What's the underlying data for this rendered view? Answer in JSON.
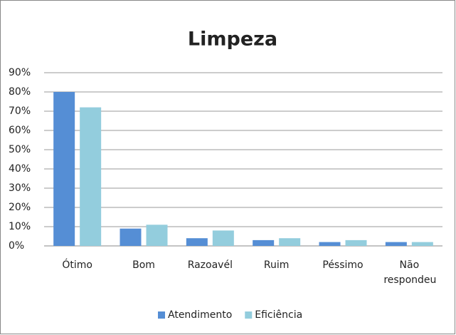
{
  "chart_data": {
    "type": "bar",
    "title": "Limpeza",
    "categories": [
      "Ótimo",
      "Bom",
      "Razoavél",
      "Ruim",
      "Péssimo",
      "Não respondeu"
    ],
    "series": [
      {
        "name": "Atendimento",
        "color": "#558ed5",
        "values": [
          80,
          9,
          4,
          3,
          2,
          2
        ]
      },
      {
        "name": "Eficiência",
        "color": "#93cddd",
        "values": [
          72,
          11,
          8,
          4,
          3,
          2
        ]
      }
    ],
    "ylim": [
      0,
      90
    ],
    "yticks": [
      {
        "value": 0,
        "label": "0%"
      },
      {
        "value": 10,
        "label": "10%"
      },
      {
        "value": 20,
        "label": "20%"
      },
      {
        "value": 30,
        "label": "30%"
      },
      {
        "value": 40,
        "label": "40%"
      },
      {
        "value": 50,
        "label": "50%"
      },
      {
        "value": 60,
        "label": "60%"
      },
      {
        "value": 70,
        "label": "70%"
      },
      {
        "value": 80,
        "label": "80%"
      },
      {
        "value": 90,
        "label": "90%"
      }
    ],
    "grid": true,
    "legend": "bottom"
  }
}
